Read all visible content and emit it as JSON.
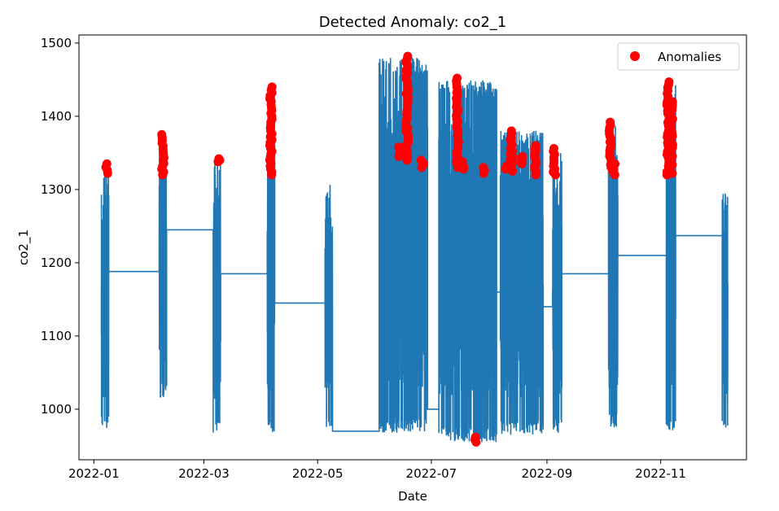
{
  "chart_data": {
    "type": "scatter",
    "title": "Detected Anomaly: co2_1",
    "xlabel": "Date",
    "ylabel": "co2_1",
    "xlim": [
      "2021-12-24",
      "2022-12-17"
    ],
    "ylim": [
      931,
      1511
    ],
    "x_ticks": [
      "2022-01",
      "2022-03",
      "2022-05",
      "2022-07",
      "2022-09",
      "2022-11"
    ],
    "y_ticks": [
      1000,
      1100,
      1200,
      1300,
      1400,
      1500
    ],
    "legend": {
      "position": "top-right",
      "entries": [
        "Anomalies"
      ]
    },
    "colors": {
      "line": "#1f77b4",
      "anomalies": "#ff0000"
    },
    "series": [
      {
        "type": "line",
        "clusters": [
          {
            "start": "2022-01-05",
            "end": "2022-01-09",
            "min": 972,
            "max": 1330,
            "connect_from": 1165
          },
          {
            "start": "2022-02-05",
            "end": "2022-02-09",
            "min": 1015,
            "max": 1370,
            "connect_from": 1188
          },
          {
            "start": "2022-03-06",
            "end": "2022-03-10",
            "min": 968,
            "max": 1340,
            "connect_from": 1245
          },
          {
            "start": "2022-04-04",
            "end": "2022-04-08",
            "min": 968,
            "max": 1440,
            "connect_from": 1185
          },
          {
            "start": "2022-05-05",
            "end": "2022-05-09",
            "min": 975,
            "max": 1310,
            "connect_from": 1145
          },
          {
            "start": "2022-06-03",
            "end": "2022-06-29",
            "min": 968,
            "max": 1480,
            "connect_from": 970
          },
          {
            "start": "2022-07-05",
            "end": "2022-08-05",
            "min": 955,
            "max": 1450,
            "connect_from": 1000
          },
          {
            "start": "2022-08-07",
            "end": "2022-08-30",
            "min": 965,
            "max": 1380,
            "connect_from": 1160
          },
          {
            "start": "2022-09-04",
            "end": "2022-09-09",
            "min": 968,
            "max": 1355,
            "connect_from": 1140
          },
          {
            "start": "2022-10-04",
            "end": "2022-10-09",
            "min": 975,
            "max": 1390,
            "connect_from": 1185
          },
          {
            "start": "2022-11-04",
            "end": "2022-11-09",
            "min": 970,
            "max": 1445,
            "connect_from": 1210
          },
          {
            "start": "2022-12-04",
            "end": "2022-12-07",
            "min": 972,
            "max": 1297,
            "connect_from": 1237
          }
        ]
      },
      {
        "type": "scatter",
        "name": "Anomalies",
        "groups": [
          {
            "date": "2022-01-08",
            "min": 1322,
            "max": 1335
          },
          {
            "date": "2022-02-07",
            "min": 1320,
            "max": 1375
          },
          {
            "date": "2022-03-09",
            "min": 1338,
            "max": 1342
          },
          {
            "date": "2022-04-06",
            "min": 1320,
            "max": 1440
          },
          {
            "date": "2022-06-14",
            "min": 1345,
            "max": 1358
          },
          {
            "date": "2022-06-18",
            "min": 1340,
            "max": 1482
          },
          {
            "date": "2022-06-26",
            "min": 1330,
            "max": 1340
          },
          {
            "date": "2022-07-15",
            "min": 1330,
            "max": 1452
          },
          {
            "date": "2022-07-18",
            "min": 1328,
            "max": 1338
          },
          {
            "date": "2022-07-25",
            "min": 955,
            "max": 962
          },
          {
            "date": "2022-07-29",
            "min": 1322,
            "max": 1330
          },
          {
            "date": "2022-08-10",
            "min": 1328,
            "max": 1332
          },
          {
            "date": "2022-08-13",
            "min": 1325,
            "max": 1380
          },
          {
            "date": "2022-08-19",
            "min": 1335,
            "max": 1345
          },
          {
            "date": "2022-08-26",
            "min": 1320,
            "max": 1360
          },
          {
            "date": "2022-09-05",
            "min": 1320,
            "max": 1356
          },
          {
            "date": "2022-10-05",
            "min": 1330,
            "max": 1392
          },
          {
            "date": "2022-10-07",
            "min": 1320,
            "max": 1335
          },
          {
            "date": "2022-11-05",
            "min": 1320,
            "max": 1447
          },
          {
            "date": "2022-11-07",
            "min": 1322,
            "max": 1420
          }
        ]
      }
    ]
  }
}
